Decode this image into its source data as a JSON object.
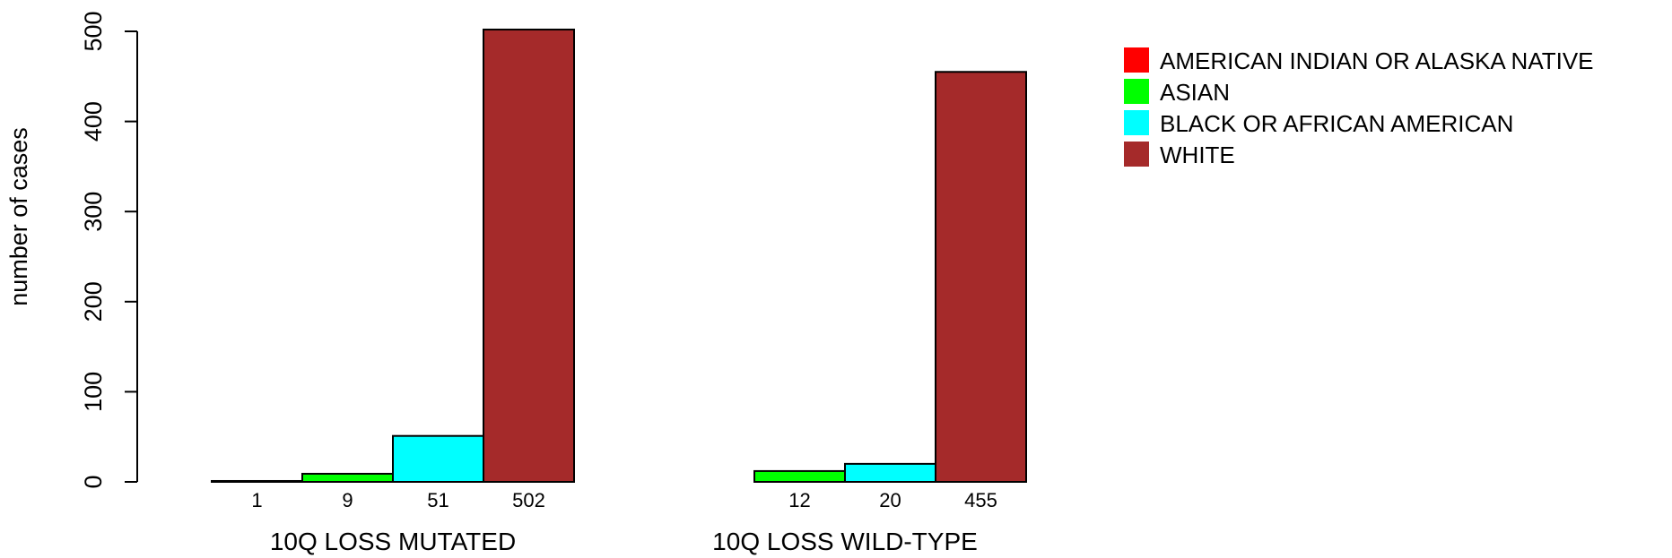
{
  "chart_data": {
    "type": "bar",
    "ylabel": "number of cases",
    "ylim": [
      0,
      500
    ],
    "yticks": [
      0,
      100,
      200,
      300,
      400,
      500
    ],
    "series": [
      {
        "name": "AMERICAN INDIAN OR ALASKA NATIVE",
        "color": "#ff0000"
      },
      {
        "name": "ASIAN",
        "color": "#00ff00"
      },
      {
        "name": "BLACK OR AFRICAN AMERICAN",
        "color": "#00ffff"
      },
      {
        "name": "WHITE",
        "color": "#a52a2a"
      }
    ],
    "groups": [
      {
        "label": "10Q LOSS MUTATED",
        "values": [
          1,
          9,
          51,
          502
        ],
        "value_labels": [
          "1",
          "9",
          "51",
          "502"
        ]
      },
      {
        "label": "10Q LOSS WILD-TYPE",
        "values": [
          0,
          12,
          20,
          455
        ],
        "value_labels": [
          "",
          "12",
          "20",
          "455"
        ]
      }
    ],
    "legend_position": "top-right",
    "grid": false
  }
}
